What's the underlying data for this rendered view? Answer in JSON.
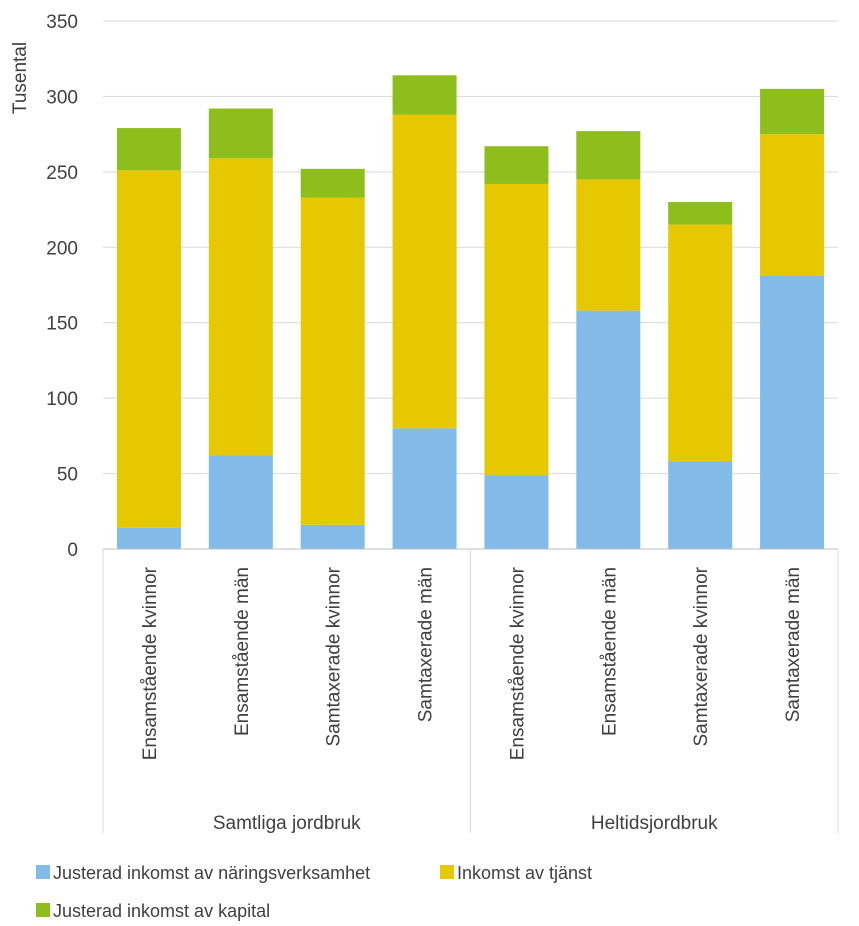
{
  "chart_data": {
    "type": "bar",
    "stacked": true,
    "ylabel": "Tusental",
    "ylim": [
      0,
      350
    ],
    "yticks": [
      0,
      50,
      100,
      150,
      200,
      250,
      300,
      350
    ],
    "grid": true,
    "legend_position": "bottom",
    "groups": [
      {
        "label": "Samtliga jordbruk",
        "categories": [
          "Ensamstående kvinnor",
          "Ensamstående män",
          "Samtaxerade kvinnor",
          "Samtaxerade män"
        ]
      },
      {
        "label": "Heltidsjordbruk",
        "categories": [
          "Ensamstående kvinnor",
          "Ensamstående män",
          "Samtaxerade kvinnor",
          "Samtaxerade män"
        ]
      }
    ],
    "series": [
      {
        "name": "Justerad inkomst av näringsverksamhet",
        "color": "#83BBE8",
        "values": [
          14,
          62,
          16,
          80,
          49,
          158,
          58,
          181
        ]
      },
      {
        "name": "Inkomst av tjänst",
        "color": "#E6C800",
        "values": [
          237,
          197,
          217,
          208,
          193,
          87,
          157,
          94
        ]
      },
      {
        "name": "Justerad inkomst av kapital",
        "color": "#8DBE1C",
        "values": [
          28,
          33,
          19,
          26,
          25,
          32,
          15,
          30
        ]
      }
    ]
  }
}
